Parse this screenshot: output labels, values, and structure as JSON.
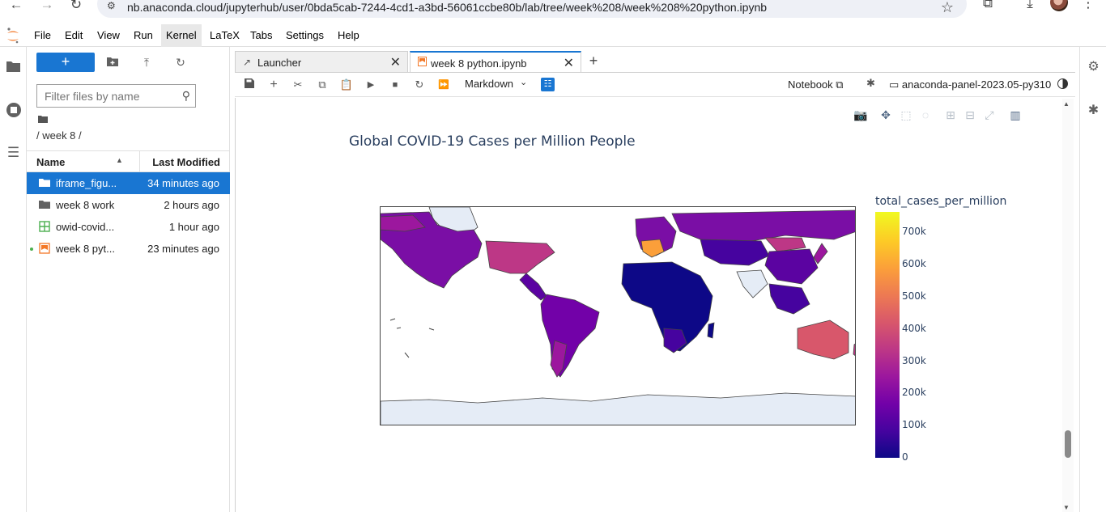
{
  "browser": {
    "url": "nb.anaconda.cloud/jupyterhub/user/0bda5cab-7244-4cd1-a3bd-56061ccbe80b/lab/tree/week%208/week%208%20python.ipynb",
    "back_glyph": "←",
    "forward_glyph": "→",
    "reload_glyph": "↻",
    "star_glyph": "☆",
    "ext_glyph": "⧉",
    "download_glyph": "⤓",
    "kebab_glyph": "⋮"
  },
  "menu": [
    "File",
    "Edit",
    "View",
    "Run",
    "Kernel",
    "LaTeX",
    "Tabs",
    "Settings",
    "Help"
  ],
  "menu_active": "Kernel",
  "filebrowser": {
    "new_label": "+",
    "filter_placeholder": "Filter files by name",
    "breadcrumb": "/ week 8 /",
    "col_name": "Name",
    "col_modified": "Last Modified",
    "files": [
      {
        "name": "iframe_figu...",
        "modified": "34 minutes ago",
        "type": "folder",
        "selected": true
      },
      {
        "name": "week 8 work",
        "modified": "2 hours ago",
        "type": "folder",
        "selected": false
      },
      {
        "name": "owid-covid...",
        "modified": "1 hour ago",
        "type": "csv",
        "selected": false
      },
      {
        "name": "week 8 pyt...",
        "modified": "23 minutes ago",
        "type": "notebook",
        "selected": false
      }
    ]
  },
  "tabs": [
    {
      "label": "Launcher",
      "icon": "launcher-icon",
      "active": false
    },
    {
      "label": "week 8 python.ipynb",
      "icon": "notebook-icon",
      "active": true
    }
  ],
  "toolbar": {
    "cell_type": "Markdown",
    "notebook_label": "Notebook",
    "kernel_name": "anaconda-panel-2023.05-py310"
  },
  "chart_data": {
    "type": "choropleth",
    "title": "Global COVID-19 Cases per Million People",
    "colorbar_title": "total_cases_per_million",
    "colorbar_ticks": [
      "0",
      "100k",
      "200k",
      "300k",
      "400k",
      "500k",
      "600k",
      "700k"
    ],
    "colorscale": [
      "#0d0887",
      "#46039f",
      "#7201a8",
      "#9c179e",
      "#bd3786",
      "#d8576b",
      "#ed7953",
      "#fb9f3a",
      "#fdca26",
      "#f0f921"
    ],
    "colorbar_range": [
      0,
      750000
    ]
  }
}
